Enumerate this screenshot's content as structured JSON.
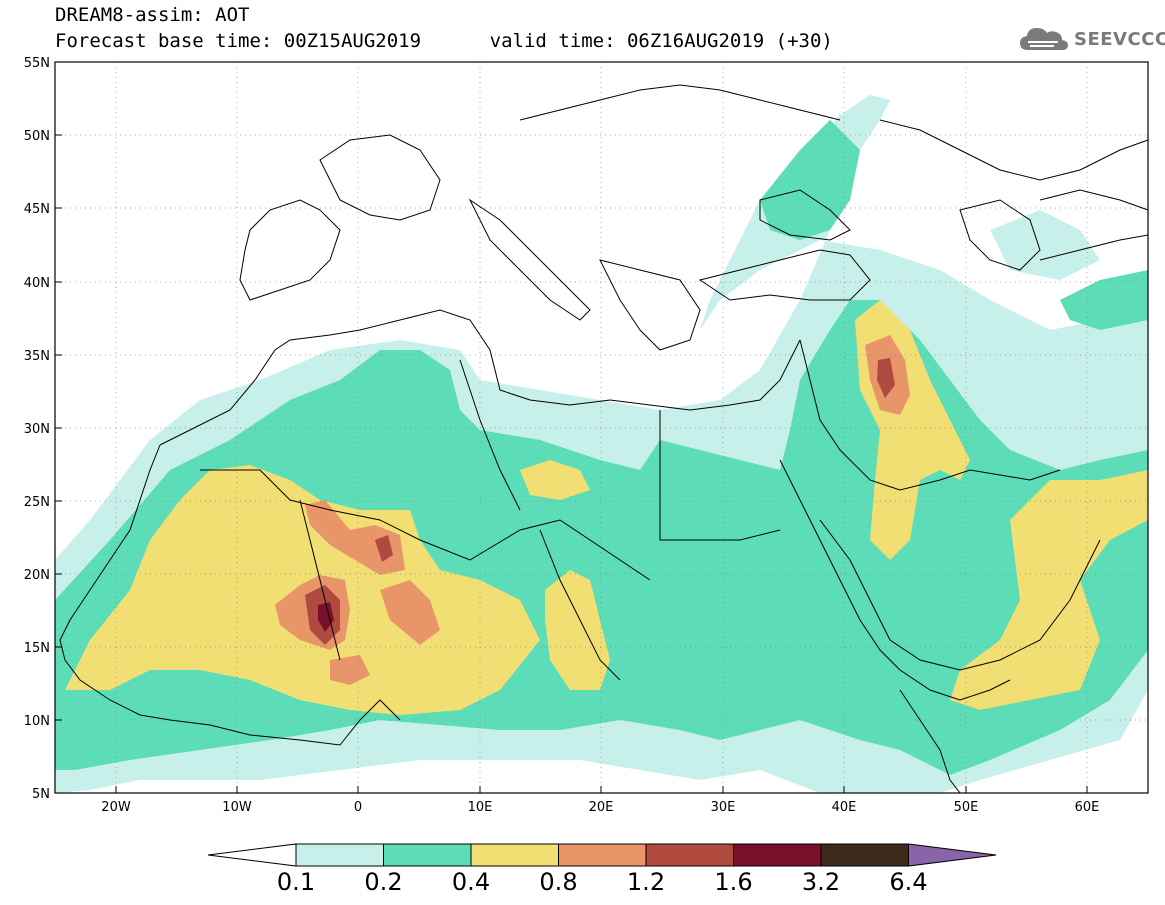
{
  "header": {
    "line1": "DREAM8-assim: AOT",
    "line2": "Forecast base time: 00Z15AUG2019      valid time: 06Z16AUG2019 (+30)"
  },
  "logo": {
    "text": "SEEVCCC",
    "icon": "cloud-icon"
  },
  "map": {
    "lon_range": [
      -25,
      65
    ],
    "lat_range": [
      5,
      55
    ],
    "lat_labels": [
      "55N",
      "50N",
      "45N",
      "40N",
      "35N",
      "30N",
      "25N",
      "20N",
      "15N",
      "10N",
      "5N"
    ],
    "lon_labels": [
      "20W",
      "10W",
      "0",
      "10E",
      "20E",
      "30E",
      "40E",
      "50E",
      "60E"
    ]
  },
  "colorbar": {
    "labels": [
      "0.1",
      "0.2",
      "0.4",
      "0.8",
      "1.2",
      "1.6",
      "3.2",
      "6.4"
    ],
    "colors": [
      "#c8f0ea",
      "#5ddcb8",
      "#f2df74",
      "#e8956a",
      "#b04a3e",
      "#7a0f2c",
      "#3c2a1a",
      "#8a64a8"
    ]
  }
}
